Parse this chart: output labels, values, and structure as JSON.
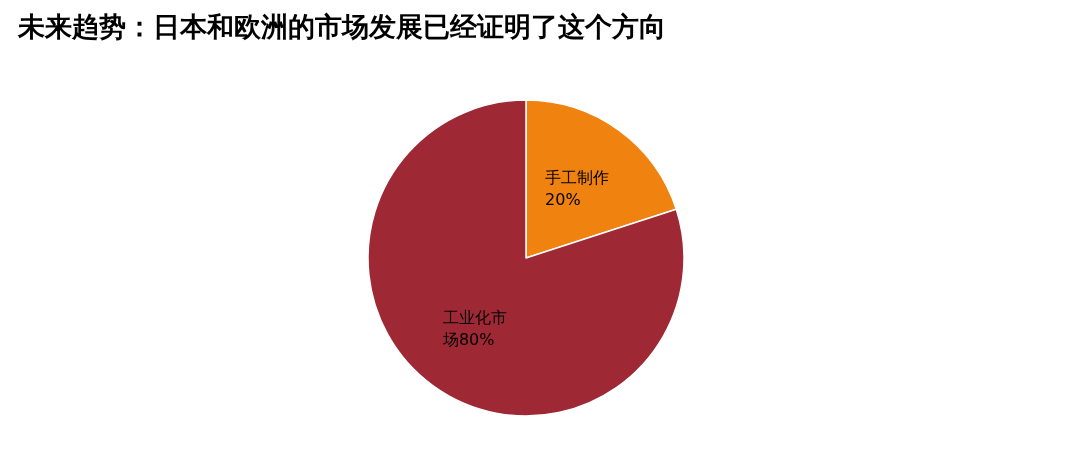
{
  "chart_data": {
    "type": "pie",
    "title": "未来趋势：日本和欧洲的市场发展已经证明了这个方向",
    "categories": [
      "手工制作",
      "工业化市场"
    ],
    "values": [
      20,
      80
    ],
    "colors": [
      "#f0820f",
      "#9e2935"
    ],
    "value_labels": [
      "20%",
      "80%"
    ]
  }
}
